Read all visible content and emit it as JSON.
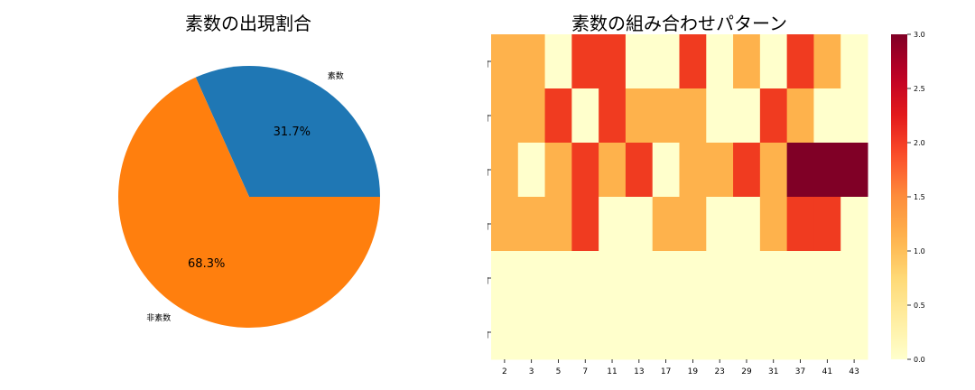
{
  "chart_data": [
    {
      "type": "pie",
      "title": "素数の出現割合",
      "slices": [
        {
          "label": "素数",
          "value": 31.7,
          "pct_label": "31.7%",
          "color": "#1f77b4"
        },
        {
          "label": "非素数",
          "value": 68.3,
          "pct_label": "68.3%",
          "color": "#ff7f0e"
        }
      ]
    },
    {
      "type": "heatmap",
      "title": "素数の組み合わせパターン",
      "x_categories": [
        "2",
        "3",
        "5",
        "7",
        "11",
        "13",
        "17",
        "19",
        "23",
        "29",
        "31",
        "37",
        "41",
        "43"
      ],
      "y_categories": [
        "1回",
        "2回",
        "3回",
        "4回",
        "5回",
        "6回"
      ],
      "values": [
        [
          1,
          1,
          0,
          2,
          2,
          0,
          0,
          2,
          0,
          1,
          0,
          2,
          1,
          0
        ],
        [
          1,
          1,
          2,
          0,
          2,
          1,
          1,
          1,
          0,
          0,
          2,
          1,
          0,
          0
        ],
        [
          1,
          0,
          1,
          2,
          1,
          2,
          0,
          1,
          1,
          2,
          1,
          3,
          3,
          3
        ],
        [
          1,
          1,
          1,
          2,
          0,
          0,
          1,
          1,
          0,
          0,
          1,
          2,
          2,
          0
        ],
        [
          0,
          0,
          0,
          0,
          0,
          0,
          0,
          0,
          0,
          0,
          0,
          0,
          0,
          0
        ],
        [
          0,
          0,
          0,
          0,
          0,
          0,
          0,
          0,
          0,
          0,
          0,
          0,
          0,
          0
        ]
      ],
      "colormap": "YlOrRd",
      "colors": {
        "0": "#ffffcc",
        "1": "#feb24c",
        "2": "#f03b20",
        "3": "#800026"
      },
      "colorbar": {
        "min": 0.0,
        "max": 3.0,
        "ticks": [
          "0.0",
          "0.5",
          "1.0",
          "1.5",
          "2.0",
          "2.5",
          "3.0"
        ]
      }
    }
  ]
}
